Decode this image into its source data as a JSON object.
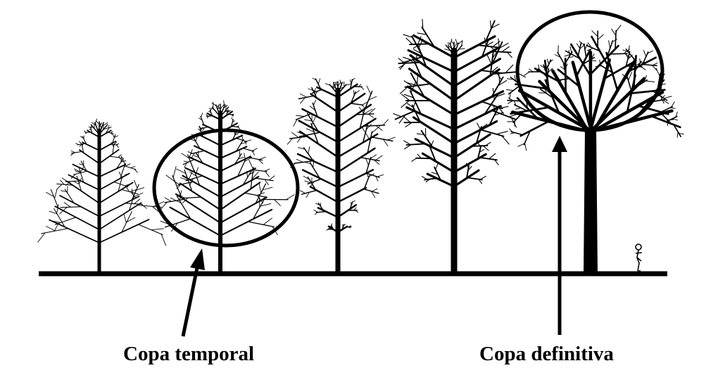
{
  "labels": {
    "temporary_crown": "Copa temporal",
    "definitive_crown": "Copa definitiva"
  },
  "colors": {
    "ink": "#000000",
    "background": "#ffffff"
  },
  "trees": [
    {
      "name": "young-tree-1",
      "stage": 1
    },
    {
      "name": "young-tree-2",
      "stage": 2,
      "circled": "temporary"
    },
    {
      "name": "young-tree-3",
      "stage": 3
    },
    {
      "name": "young-tree-4",
      "stage": 4
    },
    {
      "name": "mature-tree",
      "stage": 5,
      "circled": "definitive"
    }
  ],
  "figure": {
    "name": "human-figure-scale"
  }
}
